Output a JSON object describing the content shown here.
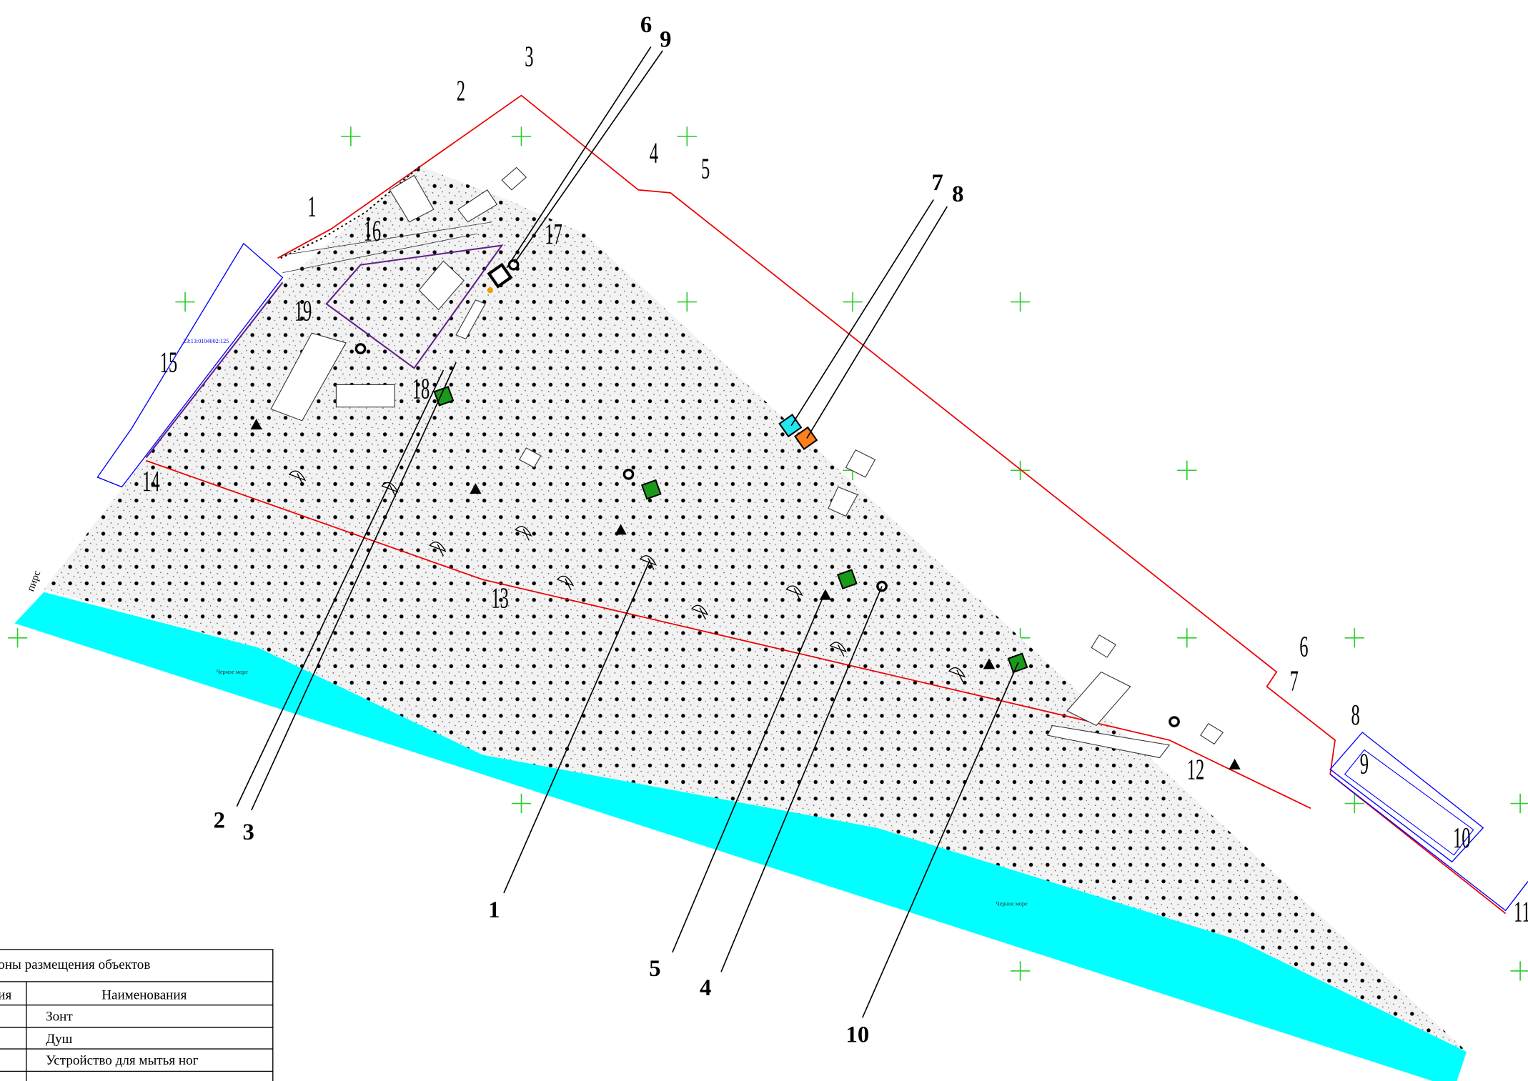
{
  "callout_labels": [
    "6",
    "9",
    "7",
    "8",
    "2",
    "3",
    "1",
    "5",
    "4",
    "10"
  ],
  "boundary_points": [
    "1",
    "2",
    "3",
    "4",
    "5",
    "6",
    "7",
    "8",
    "9",
    "10",
    "11",
    "12",
    "13",
    "14",
    "15",
    "16",
    "17",
    "18",
    "19"
  ],
  "sea_labels": [
    "Черное море",
    "Черное море"
  ],
  "pier_label": "пирс",
  "cadastral_number": "23:13:0104002:125",
  "legend": {
    "title": "оны размещения объектов",
    "header": [
      "ия",
      "Наименования"
    ],
    "rows": [
      "Зонт",
      "Душ",
      "Устройство для мытья ног"
    ]
  }
}
